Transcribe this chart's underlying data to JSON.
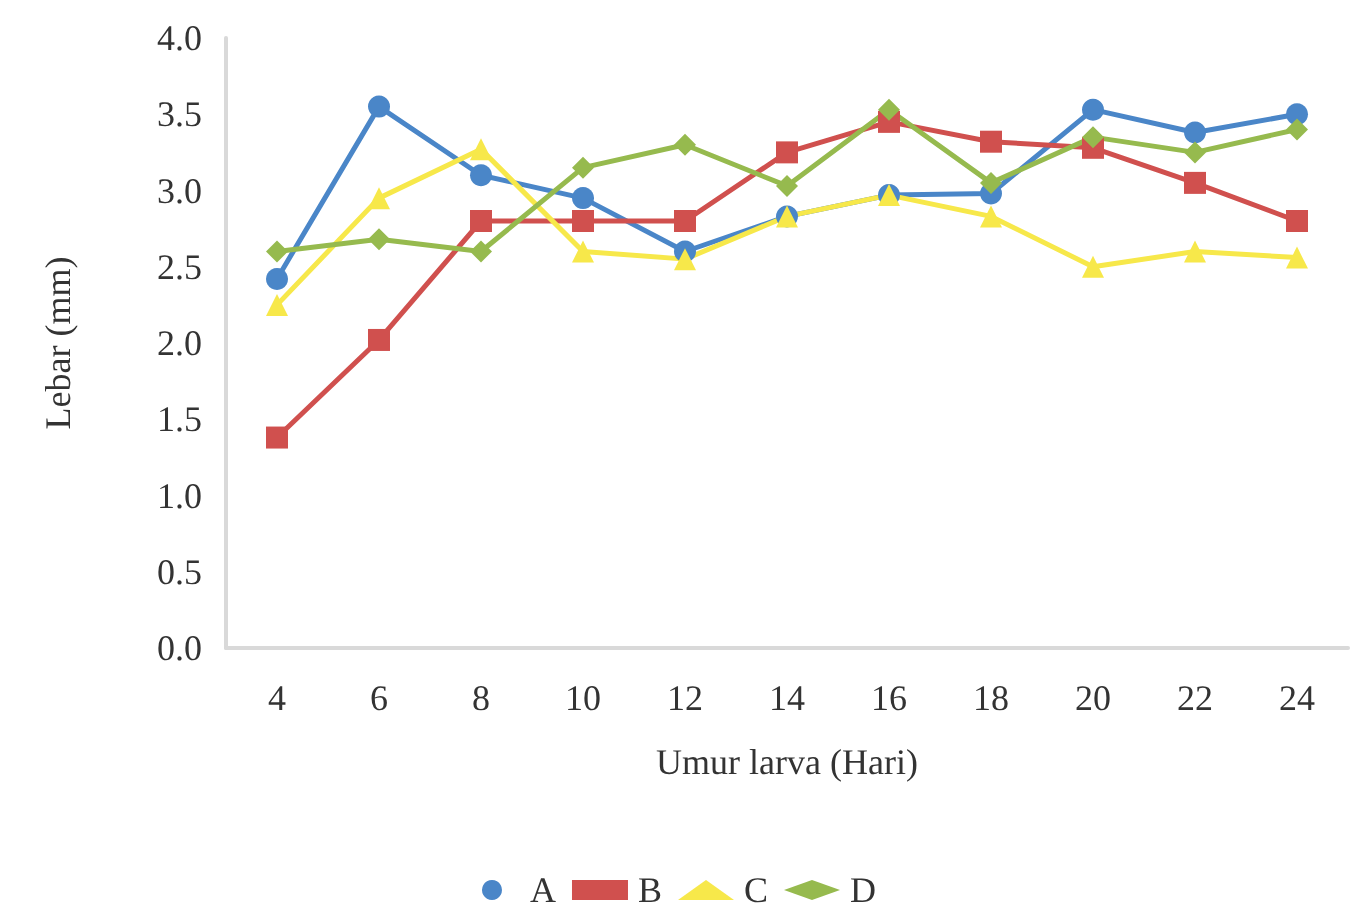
{
  "chart_data": {
    "type": "line",
    "xlabel": "Umur larva (Hari)",
    "ylabel": "Lebar (mm)",
    "categories": [
      "4",
      "6",
      "8",
      "10",
      "12",
      "14",
      "16",
      "18",
      "20",
      "22",
      "24"
    ],
    "series": [
      {
        "name": "A",
        "color": "#4a86c8",
        "marker": "circle",
        "values": [
          2.42,
          3.55,
          3.1,
          2.95,
          2.6,
          2.83,
          2.97,
          2.98,
          3.53,
          3.38,
          3.5
        ]
      },
      {
        "name": "B",
        "color": "#d0504e",
        "marker": "square",
        "values": [
          1.38,
          2.02,
          2.8,
          2.8,
          2.8,
          3.25,
          3.45,
          3.32,
          3.28,
          3.05,
          2.8
        ]
      },
      {
        "name": "C",
        "color": "#f7e84a",
        "marker": "triangle",
        "values": [
          2.25,
          2.95,
          3.27,
          2.6,
          2.55,
          2.83,
          2.97,
          2.83,
          2.5,
          2.6,
          2.56
        ]
      },
      {
        "name": "D",
        "color": "#96ba4e",
        "marker": "diamond",
        "values": [
          2.6,
          2.68,
          2.6,
          3.15,
          3.3,
          3.03,
          3.53,
          3.05,
          3.35,
          3.25,
          3.4
        ]
      }
    ],
    "ylim": [
      0,
      4
    ],
    "yticks": [
      {
        "value": 0,
        "label": "0.0"
      },
      {
        "value": 0.5,
        "label": "0.5"
      },
      {
        "value": 1,
        "label": "1.0"
      },
      {
        "value": 1.5,
        "label": "1.5"
      },
      {
        "value": 2,
        "label": "2.0"
      },
      {
        "value": 2.5,
        "label": "2.5"
      },
      {
        "value": 3,
        "label": "3.0"
      },
      {
        "value": 3.5,
        "label": "3.5"
      },
      {
        "value": 4,
        "label": "4.0"
      }
    ],
    "grid": false,
    "legend": "bottom"
  }
}
